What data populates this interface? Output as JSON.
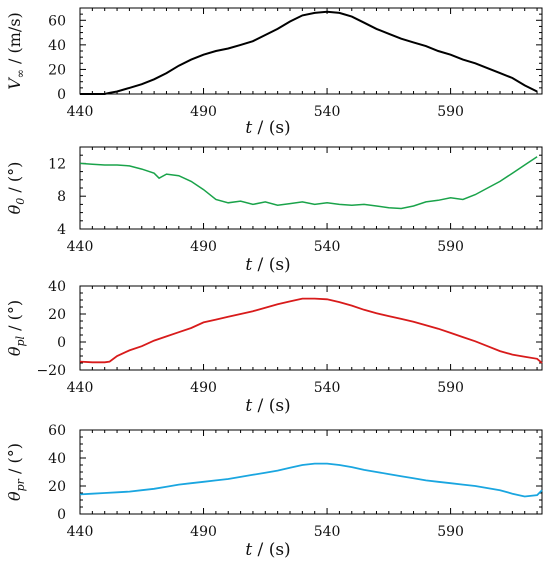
{
  "chart_data": [
    {
      "type": "line",
      "color": "#000000",
      "ylabel_main": "V",
      "ylabel_sub": "∞",
      "ylabel_rest": " / (m/s)",
      "xlabel_var": "t",
      "xlabel_rest": " / (s)",
      "xlim": [
        440,
        627
      ],
      "ylim": [
        0,
        70
      ],
      "xticks": [
        "440",
        "490",
        "540",
        "590"
      ],
      "xtick_values": [
        440,
        490,
        540,
        590
      ],
      "yticks": [
        "0",
        "20",
        "40",
        "60"
      ],
      "ytick_values": [
        0,
        20,
        40,
        60
      ],
      "series": [
        {
          "x": [
            440,
            445,
            450,
            452,
            455,
            460,
            465,
            470,
            475,
            480,
            485,
            490,
            495,
            500,
            505,
            510,
            515,
            520,
            525,
            530,
            535,
            540,
            545,
            550,
            555,
            560,
            565,
            570,
            575,
            580,
            585,
            590,
            595,
            600,
            605,
            610,
            615,
            620,
            625
          ],
          "y": [
            0,
            0,
            0,
            1,
            2,
            5,
            8,
            12,
            17,
            23,
            28,
            32,
            35,
            37,
            40,
            43,
            48,
            53,
            59,
            64,
            66,
            67,
            66,
            63,
            58,
            53,
            49,
            45,
            42,
            39,
            35,
            32,
            28,
            25,
            21,
            17,
            13,
            7,
            2
          ]
        }
      ]
    },
    {
      "type": "line",
      "color": "#1aa34a",
      "ylabel_main": "θ",
      "ylabel_sub": "0",
      "ylabel_rest": " / (°)",
      "xlabel_var": "t",
      "xlabel_rest": " / (s)",
      "xlim": [
        440,
        627
      ],
      "ylim": [
        4,
        14
      ],
      "xticks": [
        "440",
        "490",
        "540",
        "590"
      ],
      "xtick_values": [
        440,
        490,
        540,
        590
      ],
      "yticks": [
        "4",
        "8",
        "12"
      ],
      "ytick_values": [
        4,
        8,
        12
      ],
      "series": [
        {
          "x": [
            440,
            445,
            450,
            455,
            460,
            465,
            470,
            472,
            475,
            480,
            485,
            490,
            495,
            500,
            505,
            510,
            515,
            520,
            525,
            530,
            535,
            540,
            545,
            550,
            555,
            560,
            565,
            570,
            575,
            580,
            585,
            590,
            595,
            600,
            605,
            610,
            615,
            620,
            625
          ],
          "y": [
            12,
            11.9,
            11.8,
            11.8,
            11.7,
            11.3,
            10.8,
            10.2,
            10.7,
            10.5,
            9.8,
            8.8,
            7.6,
            7.2,
            7.4,
            7.0,
            7.3,
            6.9,
            7.1,
            7.3,
            7.0,
            7.2,
            7.0,
            6.9,
            7.0,
            6.8,
            6.6,
            6.5,
            6.8,
            7.3,
            7.5,
            7.8,
            7.6,
            8.2,
            9.0,
            9.8,
            10.8,
            11.8,
            12.8
          ]
        }
      ]
    },
    {
      "type": "line",
      "color": "#d81b1b",
      "ylabel_main": "θ",
      "ylabel_sub": "pl",
      "ylabel_rest": " / (°)",
      "xlabel_var": "t",
      "xlabel_rest": " / (s)",
      "xlim": [
        440,
        627
      ],
      "ylim": [
        -20,
        40
      ],
      "xticks": [
        "440",
        "490",
        "540",
        "590"
      ],
      "xtick_values": [
        440,
        490,
        540,
        590
      ],
      "yticks": [
        "−20",
        "0",
        "20",
        "40"
      ],
      "ytick_values": [
        -20,
        0,
        20,
        40
      ],
      "series": [
        {
          "x": [
            440,
            445,
            450,
            452,
            455,
            460,
            465,
            470,
            475,
            480,
            485,
            490,
            495,
            500,
            505,
            510,
            515,
            520,
            525,
            530,
            535,
            540,
            545,
            550,
            555,
            560,
            565,
            570,
            575,
            580,
            585,
            590,
            595,
            600,
            605,
            610,
            615,
            620,
            625,
            627
          ],
          "y": [
            -14,
            -14.5,
            -14.5,
            -14,
            -10,
            -6,
            -3,
            1,
            4,
            7,
            10,
            14,
            16,
            18,
            20,
            22,
            24.5,
            27,
            29,
            31,
            31,
            30.5,
            28.5,
            26,
            23,
            20.5,
            18.5,
            16.5,
            14.5,
            12,
            9.5,
            6.5,
            3.5,
            0.5,
            -3,
            -6.5,
            -9,
            -10.5,
            -12,
            -15
          ]
        }
      ]
    },
    {
      "type": "line",
      "color": "#1aa6e0",
      "ylabel_main": "θ",
      "ylabel_sub": "pr",
      "ylabel_rest": " / (°)",
      "xlabel_var": "t",
      "xlabel_rest": " / (s)",
      "xlim": [
        440,
        627
      ],
      "ylim": [
        0,
        60
      ],
      "xticks": [
        "440",
        "490",
        "540",
        "590"
      ],
      "xtick_values": [
        440,
        490,
        540,
        590
      ],
      "yticks": [
        "0",
        "20",
        "40",
        "60"
      ],
      "ytick_values": [
        0,
        20,
        40,
        60
      ],
      "series": [
        {
          "x": [
            440,
            445,
            450,
            455,
            460,
            465,
            470,
            475,
            480,
            485,
            490,
            495,
            500,
            505,
            510,
            515,
            520,
            525,
            530,
            535,
            540,
            545,
            550,
            555,
            560,
            565,
            570,
            575,
            580,
            585,
            590,
            595,
            600,
            605,
            610,
            615,
            620,
            625,
            627
          ],
          "y": [
            14,
            14.5,
            15,
            15.5,
            16,
            17,
            18,
            19.5,
            21,
            22,
            23,
            24,
            25,
            26.5,
            28,
            29.5,
            31,
            33,
            35,
            36,
            36,
            35,
            33.5,
            31.5,
            30,
            28.5,
            27,
            25.5,
            24,
            23,
            22,
            21,
            20,
            18.5,
            17,
            14.5,
            12.5,
            13.5,
            17
          ]
        }
      ]
    }
  ]
}
